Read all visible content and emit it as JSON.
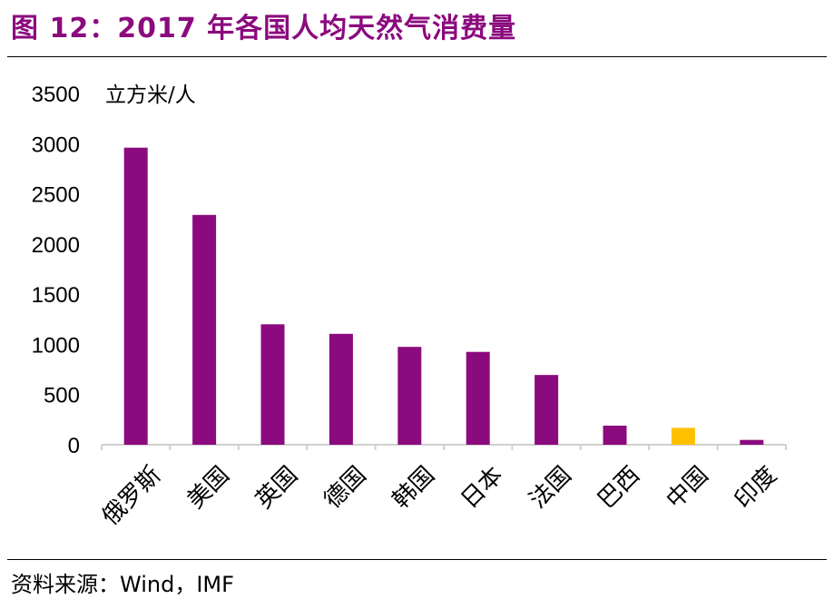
{
  "title": "图 12：2017 年各国人均天然气消费量",
  "source": "资料来源：Wind，IMF",
  "chart_data": {
    "type": "bar",
    "ylabel": "立方米/人",
    "ylim": [
      0,
      3500
    ],
    "yticks": [
      0,
      500,
      1000,
      1500,
      2000,
      2500,
      3000,
      3500
    ],
    "categories": [
      "俄罗斯",
      "美国",
      "英国",
      "德国",
      "韩国",
      "日本",
      "法国",
      "巴西",
      "中国",
      "印度"
    ],
    "values": [
      2960,
      2290,
      1200,
      1105,
      975,
      925,
      695,
      190,
      168,
      48
    ],
    "colors": {
      "default": "#8b0a7e",
      "highlight": "#ffc000"
    },
    "highlight": "中国",
    "grid": false
  }
}
